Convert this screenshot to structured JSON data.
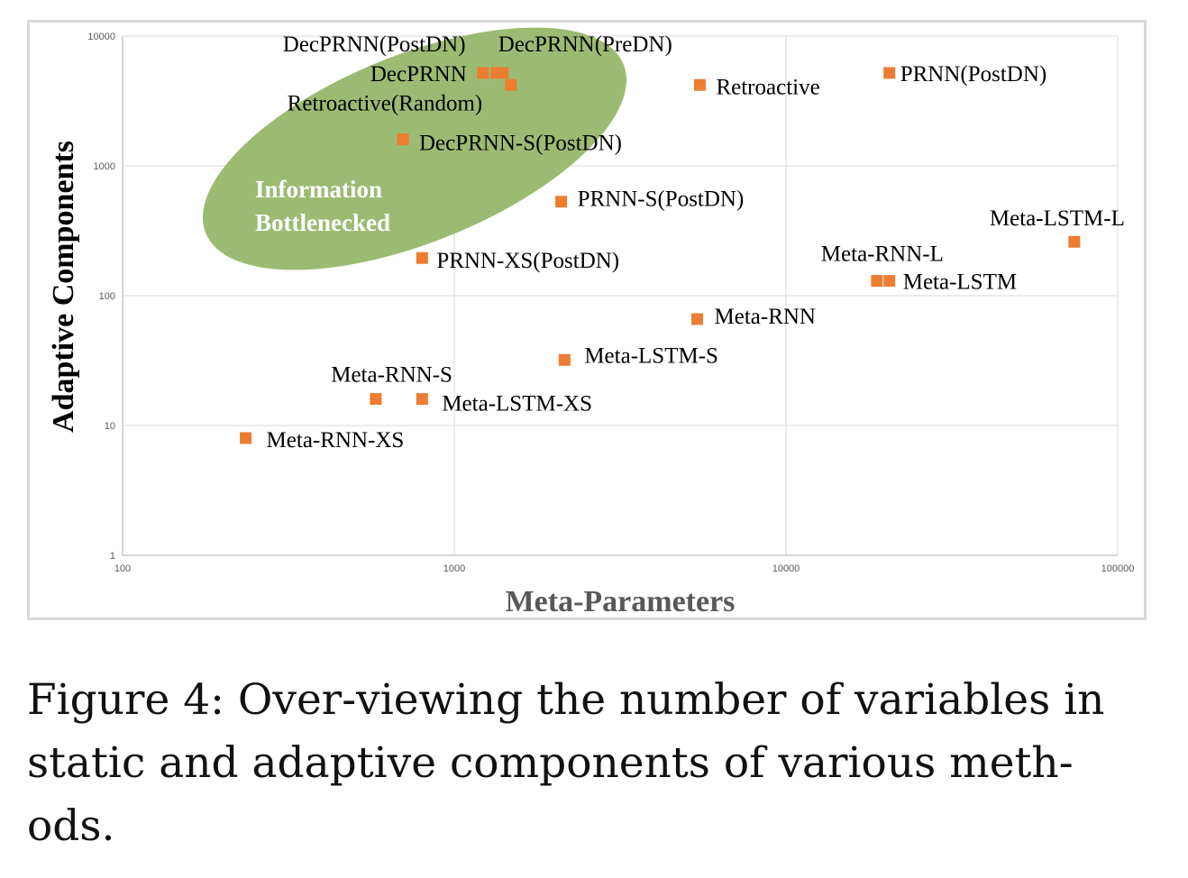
{
  "chart_data": {
    "type": "scatter",
    "xlabel": "Meta-Parameters",
    "ylabel": "Adaptive Components",
    "xscale": "log",
    "yscale": "log",
    "xlim": [
      100,
      100000
    ],
    "ylim": [
      1,
      10000
    ],
    "x_ticks": [
      "100",
      "1000",
      "10000",
      "100000"
    ],
    "y_ticks": [
      "1",
      "10",
      "100",
      "1000",
      "10000"
    ],
    "grid": true,
    "marker_color": "#ED7D31",
    "highlight": {
      "text_line1": "Information",
      "text_line2": "Bottlenecked",
      "color": "#9BBB73"
    },
    "points": [
      {
        "label": "DecPRNN(PostDN)",
        "x": 1220,
        "y": 5200
      },
      {
        "label": "DecPRNN(PreDN)",
        "x": 1400,
        "y": 5200
      },
      {
        "label": "DecPRNN",
        "x": 1340,
        "y": 5200
      },
      {
        "label": "Retroactive(Random)",
        "x": 1480,
        "y": 4200
      },
      {
        "label": "Retroactive",
        "x": 5500,
        "y": 4200
      },
      {
        "label": "PRNN(PostDN)",
        "x": 20500,
        "y": 5200
      },
      {
        "label": "DecPRNN-S(PostDN)",
        "x": 700,
        "y": 1600
      },
      {
        "label": "PRNN-S(PostDN)",
        "x": 2100,
        "y": 530
      },
      {
        "label": "PRNN-XS(PostDN)",
        "x": 800,
        "y": 195
      },
      {
        "label": "Meta-LSTM-L",
        "x": 74000,
        "y": 260
      },
      {
        "label": "Meta-RNN-L",
        "x": 18800,
        "y": 130
      },
      {
        "label": "Meta-LSTM",
        "x": 20500,
        "y": 130
      },
      {
        "label": "Meta-RNN",
        "x": 5400,
        "y": 66
      },
      {
        "label": "Meta-LSTM-S",
        "x": 2150,
        "y": 32
      },
      {
        "label": "Meta-RNN-S",
        "x": 580,
        "y": 16
      },
      {
        "label": "Meta-LSTM-XS",
        "x": 800,
        "y": 16
      },
      {
        "label": "Meta-RNN-XS",
        "x": 235,
        "y": 8
      }
    ]
  },
  "caption": "Figure 4: Over-viewing the number of variables in static and adaptive components of various methods.",
  "caption_lines": [
    "Figure 4: Over-viewing the number of variables in",
    "static and adaptive components of various meth-",
    "ods."
  ]
}
